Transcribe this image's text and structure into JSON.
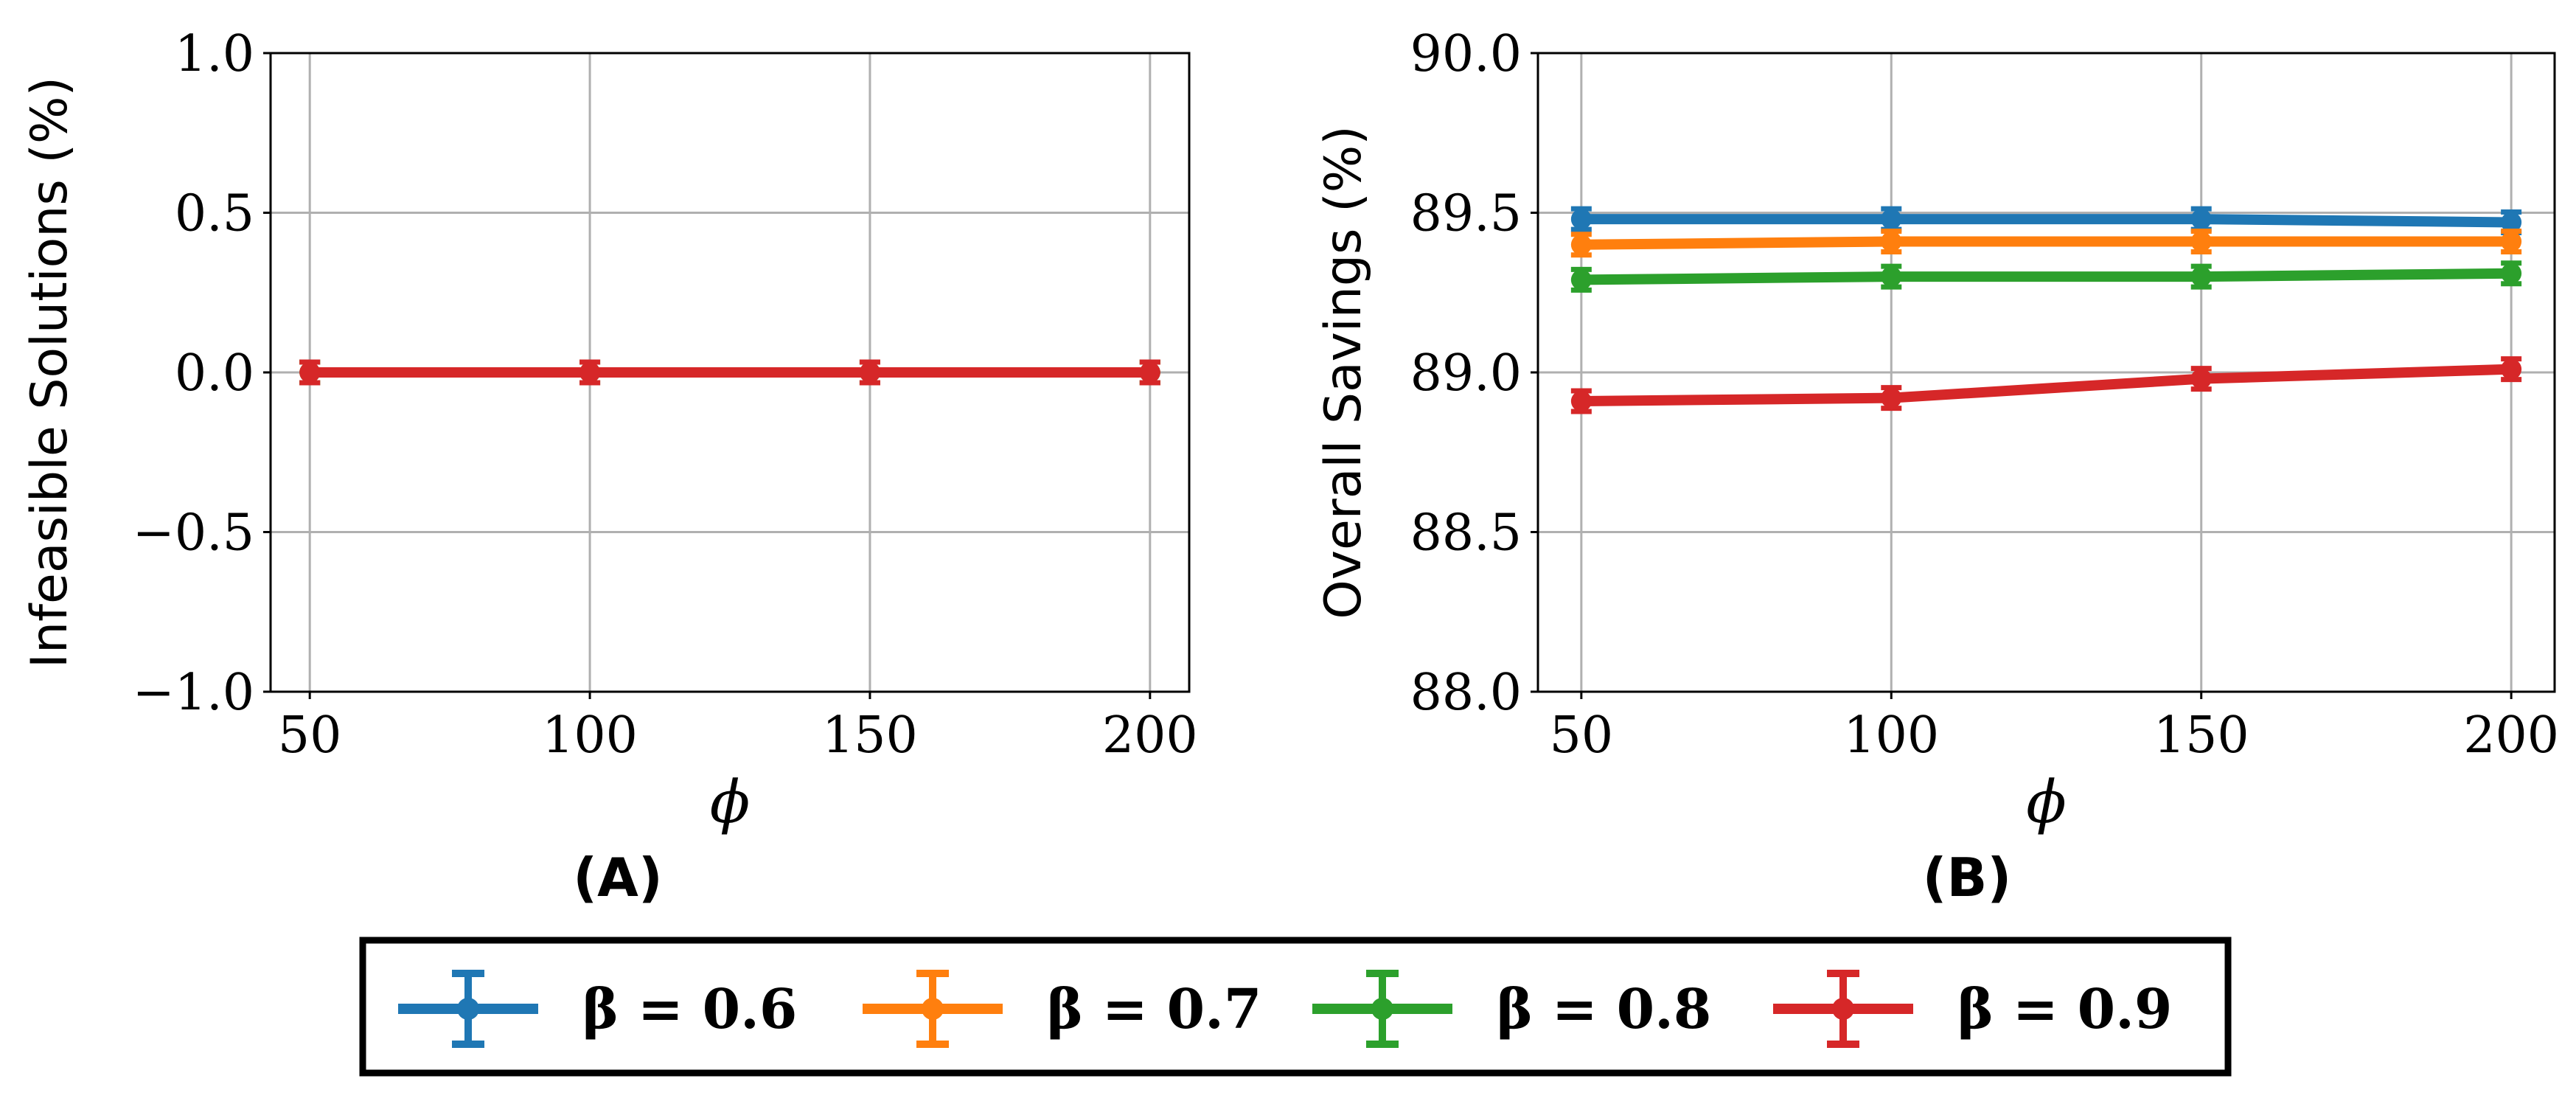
{
  "chart_data": [
    {
      "type": "line",
      "panel_label": "(A)",
      "xlabel": "ϕ",
      "ylabel": "Infeasible Solutions (%)",
      "x": [
        50,
        100,
        150,
        200
      ],
      "x_ticks": [
        "50",
        "100",
        "150",
        "200"
      ],
      "xlim": [
        43,
        207
      ],
      "ylim": [
        -1.0,
        1.0
      ],
      "y_ticks": [
        -1.0,
        -0.5,
        0.0,
        0.5,
        1.0
      ],
      "y_tick_labels": [
        "−1.0",
        "−0.5",
        "0.0",
        "0.5",
        "1.0"
      ],
      "grid": true,
      "series": [
        {
          "name": "β = 0.6",
          "color": "#1f77b4",
          "values": [
            0,
            0,
            0,
            0
          ]
        },
        {
          "name": "β = 0.7",
          "color": "#ff7f0e",
          "values": [
            0,
            0,
            0,
            0
          ]
        },
        {
          "name": "β = 0.8",
          "color": "#2ca02c",
          "values": [
            0,
            0,
            0,
            0
          ]
        },
        {
          "name": "β = 0.9",
          "color": "#d62728",
          "values": [
            0,
            0,
            0,
            0
          ]
        }
      ]
    },
    {
      "type": "line",
      "panel_label": "(B)",
      "xlabel": "ϕ",
      "ylabel": "Overall Savings (%)",
      "x": [
        50,
        100,
        150,
        200
      ],
      "x_ticks": [
        "50",
        "100",
        "150",
        "200"
      ],
      "xlim": [
        43,
        207
      ],
      "ylim": [
        88.0,
        90.0
      ],
      "y_ticks": [
        88.0,
        88.5,
        89.0,
        89.5,
        90.0
      ],
      "y_tick_labels": [
        "88.0",
        "88.5",
        "89.0",
        "89.5",
        "90.0"
      ],
      "grid": true,
      "series": [
        {
          "name": "β = 0.6",
          "color": "#1f77b4",
          "values": [
            89.48,
            89.48,
            89.48,
            89.47
          ]
        },
        {
          "name": "β = 0.7",
          "color": "#ff7f0e",
          "values": [
            89.4,
            89.41,
            89.41,
            89.41
          ]
        },
        {
          "name": "β = 0.8",
          "color": "#2ca02c",
          "values": [
            89.29,
            89.3,
            89.3,
            89.31
          ]
        },
        {
          "name": "β = 0.9",
          "color": "#d62728",
          "values": [
            88.91,
            88.92,
            88.98,
            89.01
          ]
        }
      ]
    }
  ],
  "legend": {
    "placement": "bottom-center",
    "entries": [
      {
        "label": "β = 0.6",
        "color": "#1f77b4"
      },
      {
        "label": "β = 0.7",
        "color": "#ff7f0e"
      },
      {
        "label": "β = 0.8",
        "color": "#2ca02c"
      },
      {
        "label": "β = 0.9",
        "color": "#d62728"
      }
    ]
  }
}
